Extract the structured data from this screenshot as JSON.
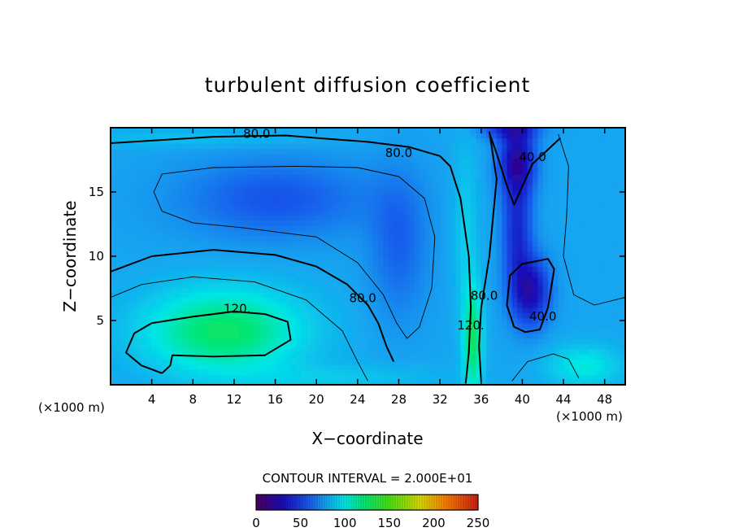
{
  "chart_data": {
    "type": "heatmap",
    "title": "turbulent diffusion coefficient",
    "xlabel": "X−coordinate",
    "ylabel": "Z−coordinate",
    "x_unit_left": "(×1000 m)",
    "x_unit_right": "(×1000 m)",
    "xlim": [
      0,
      50
    ],
    "ylim": [
      0,
      20
    ],
    "x_ticks": [
      4,
      8,
      12,
      16,
      20,
      24,
      28,
      32,
      36,
      40,
      44,
      48
    ],
    "y_ticks": [
      5,
      10,
      15
    ],
    "contour_interval_text": "CONTOUR INTERVAL = 2.000E+01",
    "colorbar": {
      "min": 0,
      "max": 250,
      "ticks": [
        0,
        50,
        100,
        150,
        200,
        250
      ]
    },
    "contour_labels": [
      {
        "text": "80.0",
        "x": 14.2,
        "z": 19.5
      },
      {
        "text": "80.0",
        "x": 28.0,
        "z": 18.0
      },
      {
        "text": "40.0",
        "x": 41.0,
        "z": 17.7
      },
      {
        "text": "80.0",
        "x": 24.5,
        "z": 6.7
      },
      {
        "text": "120.",
        "x": 12.3,
        "z": 5.9
      },
      {
        "text": "80.0",
        "x": 36.3,
        "z": 6.9
      },
      {
        "text": "120.",
        "x": 35.0,
        "z": 4.6
      },
      {
        "text": "40.0",
        "x": 42.0,
        "z": 5.3
      }
    ],
    "contours": [
      {
        "level": 80,
        "bold": true,
        "points": [
          [
            0,
            18.8
          ],
          [
            10,
            19.3
          ],
          [
            17,
            19.4
          ],
          [
            20,
            19.2
          ],
          [
            25,
            18.9
          ],
          [
            29,
            18.5
          ],
          [
            32,
            17.8
          ],
          [
            33,
            17
          ],
          [
            34,
            14.5
          ],
          [
            34.8,
            10
          ],
          [
            35,
            6
          ],
          [
            34.8,
            2.5
          ],
          [
            34.5,
            0.1
          ]
        ]
      },
      {
        "level": 80,
        "bold": true,
        "points": [
          [
            0,
            8.8
          ],
          [
            4,
            10
          ],
          [
            10,
            10.5
          ],
          [
            16,
            10.1
          ],
          [
            20,
            9.2
          ],
          [
            23,
            7.8
          ],
          [
            25,
            6.2
          ],
          [
            26,
            4.8
          ],
          [
            26.8,
            3.0
          ],
          [
            27.5,
            1.8
          ]
        ]
      },
      {
        "level": 120,
        "bold": true,
        "points": [
          [
            5,
            0.9
          ],
          [
            3,
            1.5
          ],
          [
            1.5,
            2.5
          ],
          [
            2.3,
            4.0
          ],
          [
            4,
            4.8
          ],
          [
            8,
            5.3
          ],
          [
            12,
            5.7
          ],
          [
            15,
            5.5
          ],
          [
            17.2,
            4.9
          ],
          [
            17.5,
            3.5
          ],
          [
            15,
            2.3
          ],
          [
            10,
            2.2
          ],
          [
            6,
            2.3
          ],
          [
            5.8,
            1.5
          ],
          [
            5,
            0.9
          ]
        ]
      },
      {
        "level": 40,
        "bold": true,
        "points": [
          [
            36.8,
            19.6
          ],
          [
            37.5,
            18
          ],
          [
            38.5,
            15.5
          ],
          [
            39.2,
            14
          ],
          [
            40.2,
            15.8
          ],
          [
            41,
            17.2
          ],
          [
            42.5,
            18.3
          ],
          [
            43.7,
            19.2
          ]
        ]
      },
      {
        "level": 40,
        "bold": true,
        "points": [
          [
            39.2,
            4.5
          ],
          [
            38.5,
            6.2
          ],
          [
            38.8,
            8.5
          ],
          [
            40,
            9.4
          ],
          [
            42.5,
            9.8
          ],
          [
            43.1,
            9.0
          ],
          [
            42.5,
            6.0
          ],
          [
            41.7,
            4.3
          ],
          [
            40.3,
            4.1
          ],
          [
            39.2,
            4.5
          ]
        ]
      },
      {
        "level": 80,
        "bold": true,
        "points": [
          [
            36,
            0.2
          ],
          [
            35.8,
            3
          ],
          [
            36,
            6
          ],
          [
            36.8,
            10
          ],
          [
            37.5,
            16
          ],
          [
            36.8,
            19.7
          ]
        ]
      },
      {
        "level": 100,
        "bold": false,
        "points": [
          [
            0,
            6.8
          ],
          [
            3,
            7.8
          ],
          [
            8,
            8.4
          ],
          [
            14,
            8.0
          ],
          [
            19,
            6.6
          ],
          [
            22.5,
            4.2
          ],
          [
            24,
            1.8
          ],
          [
            25,
            0.3
          ]
        ]
      },
      {
        "level": 60,
        "bold": false,
        "points": [
          [
            5,
            16.4
          ],
          [
            10,
            16.9
          ],
          [
            18,
            17
          ],
          [
            24,
            16.9
          ],
          [
            28,
            16.2
          ],
          [
            30.5,
            14.5
          ],
          [
            31.5,
            11.5
          ],
          [
            31.2,
            7.5
          ],
          [
            30,
            4.5
          ],
          [
            28.8,
            3.6
          ],
          [
            27.8,
            4.8
          ],
          [
            26.5,
            7
          ],
          [
            24,
            9.5
          ],
          [
            20,
            11.5
          ],
          [
            13,
            12.2
          ],
          [
            8,
            12.6
          ],
          [
            5,
            13.5
          ],
          [
            4.2,
            15
          ],
          [
            5,
            16.4
          ]
        ]
      },
      {
        "level": 60,
        "bold": false,
        "points": [
          [
            43.5,
            19.5
          ],
          [
            44.5,
            17
          ],
          [
            44.3,
            13
          ],
          [
            44,
            10
          ],
          [
            45,
            7
          ],
          [
            47,
            6.2
          ],
          [
            50,
            6.8
          ]
        ]
      },
      {
        "level": 60,
        "bold": false,
        "points": [
          [
            39,
            0.3
          ],
          [
            40.5,
            1.8
          ],
          [
            43,
            2.4
          ],
          [
            44.5,
            2.0
          ],
          [
            45.5,
            0.5
          ]
        ]
      }
    ],
    "field": {
      "background": 80,
      "bumps": [
        {
          "x": 11,
          "z": 4.2,
          "sx": 7.5,
          "sz": 3.2,
          "amp": 45
        },
        {
          "x": 16,
          "z": 14.5,
          "sx": 9,
          "sz": 3,
          "amp": -22
        },
        {
          "x": 28,
          "z": 11,
          "sx": 2.8,
          "sz": 5.5,
          "amp": -18
        },
        {
          "x": 35.2,
          "z": 3.5,
          "sx": 0.9,
          "sz": 4,
          "amp": 45
        },
        {
          "x": 34.5,
          "z": 12,
          "sx": 1.2,
          "sz": 7,
          "amp": 12
        },
        {
          "x": 39.5,
          "z": 17.5,
          "sx": 1.7,
          "sz": 2.6,
          "amp": -55
        },
        {
          "x": 38.8,
          "z": 19.9,
          "sx": 2.6,
          "sz": 0.8,
          "amp": -35
        },
        {
          "x": 40.8,
          "z": 7.3,
          "sx": 1.8,
          "sz": 2.6,
          "amp": -52
        },
        {
          "x": 39.5,
          "z": 12,
          "sx": 1.4,
          "sz": 4.5,
          "amp": -38
        },
        {
          "x": 46,
          "z": 1.5,
          "sx": 3.5,
          "sz": 1.6,
          "amp": 22
        },
        {
          "x": 22,
          "z": 0.6,
          "sx": 10,
          "sz": 1.0,
          "amp": 10
        },
        {
          "x": 8,
          "z": 19.2,
          "sx": 12,
          "sz": 0.7,
          "amp": 8
        }
      ]
    }
  }
}
